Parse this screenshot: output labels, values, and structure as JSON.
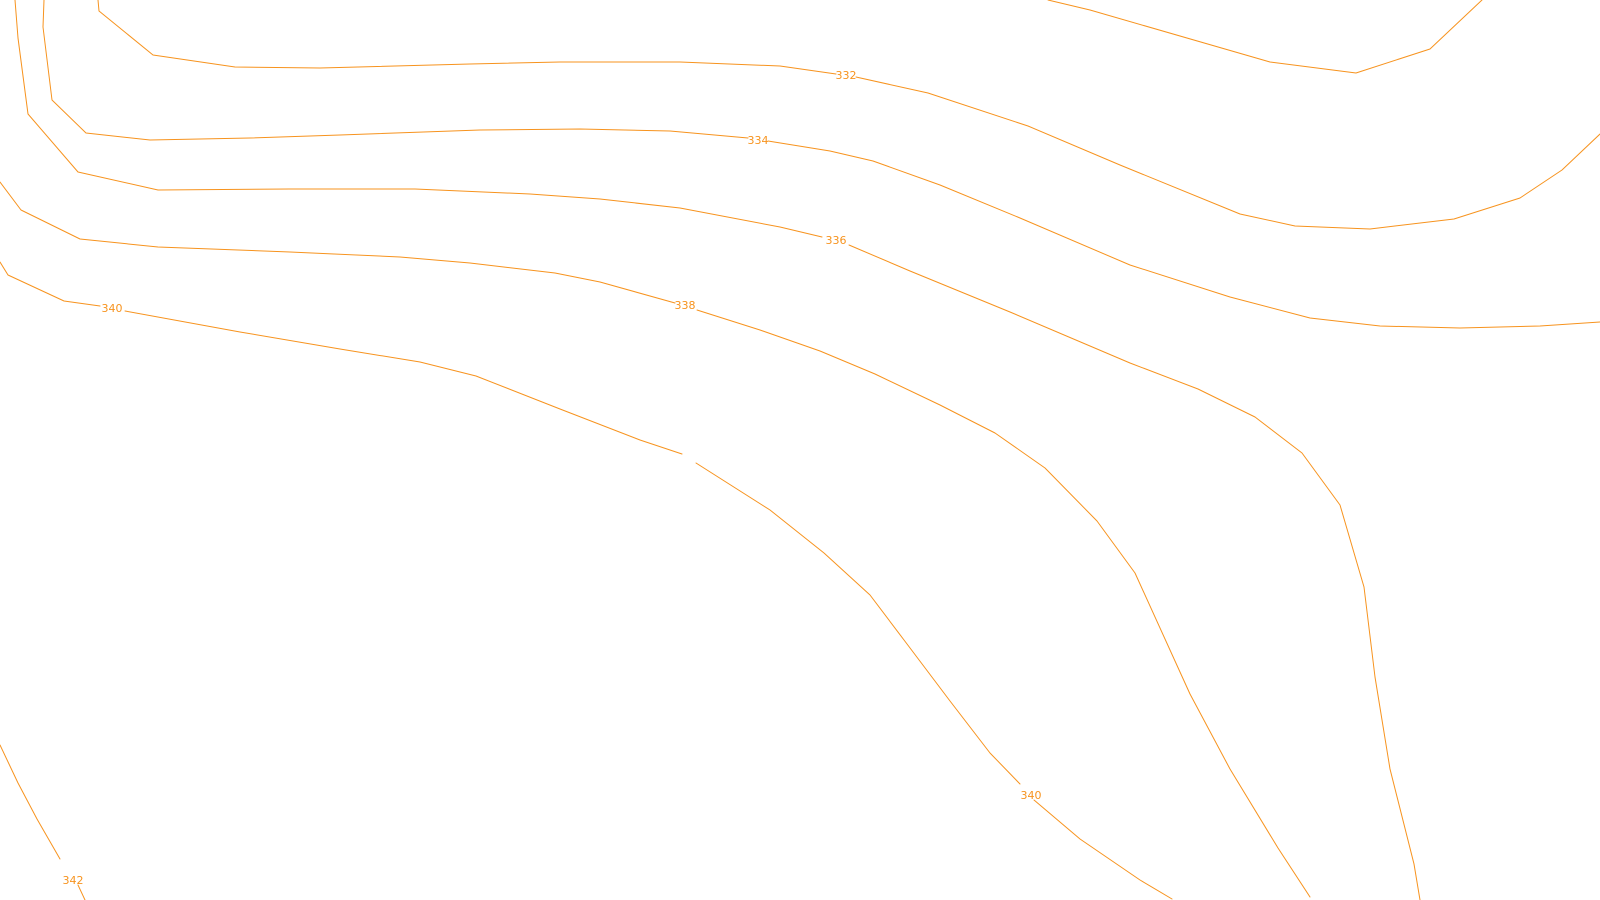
{
  "map": {
    "background_color": "#ffffff",
    "contour_color": "#f7931e",
    "contour_interval": 2,
    "contour_lines": [
      {
        "elevation": 332,
        "label": "332"
      },
      {
        "elevation": 334,
        "label": "334"
      },
      {
        "elevation": 336,
        "label": "336"
      },
      {
        "elevation": 338,
        "label": "338"
      },
      {
        "elevation": 340,
        "label": "340"
      },
      {
        "elevation": 342,
        "label": "342"
      }
    ]
  }
}
